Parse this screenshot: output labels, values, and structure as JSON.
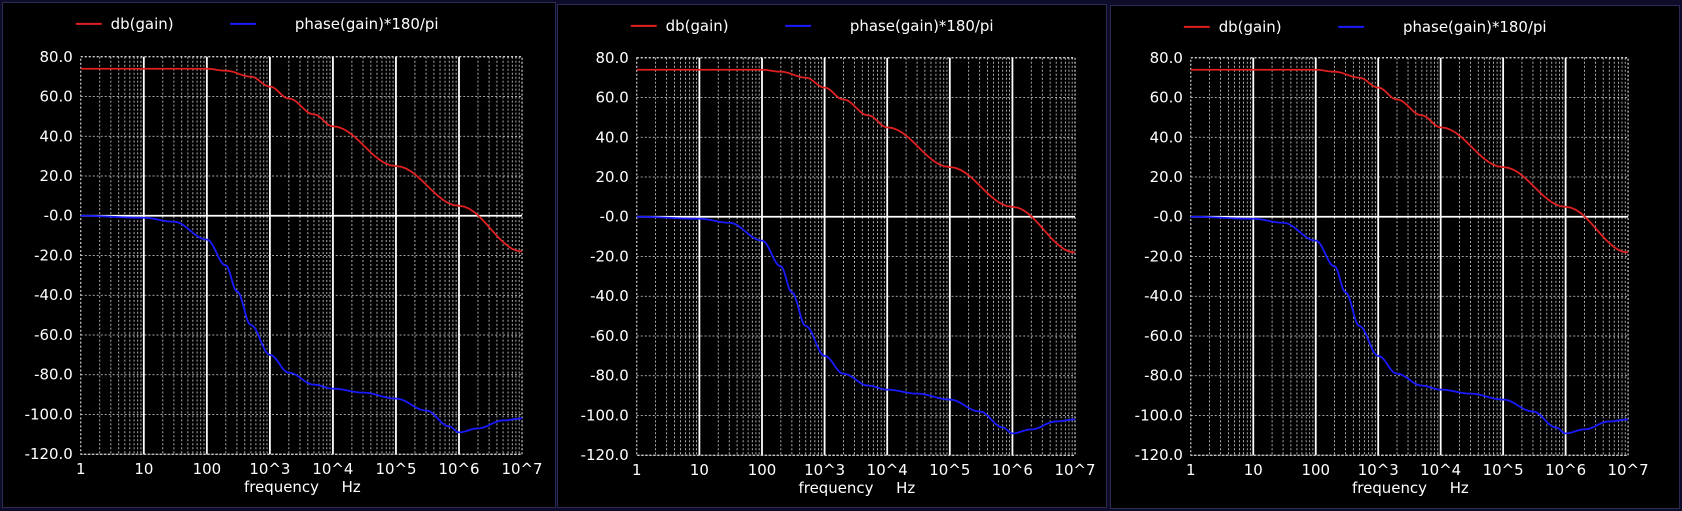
{
  "colors": {
    "background": "#000000",
    "page_border": "#0d0d2a",
    "gain_series": "#e02020",
    "phase_series": "#1a1aff",
    "grid": "#ffffff"
  },
  "chart_data": [
    {
      "type": "line",
      "title": "",
      "xlabel": "frequency",
      "xunit": "Hz",
      "ylabel": "",
      "x_scale": "log",
      "xlim": [
        1,
        10000000
      ],
      "ylim": [
        -120,
        80
      ],
      "grid": true,
      "legend_placement": "top-left",
      "x_ticks": [
        "1",
        "10",
        "100",
        "10^3",
        "10^4",
        "10^5",
        "10^6",
        "10^7"
      ],
      "y_ticks": [
        "80.0",
        "60.0",
        "40.0",
        "20.0",
        "-0.0",
        "-20.0",
        "-40.0",
        "-60.0",
        "-80.0",
        "-100.0",
        "-120.0"
      ],
      "series": [
        {
          "name": "db(gain)",
          "x": [
            1,
            10,
            100,
            200,
            500,
            1000,
            2000,
            5000,
            10000,
            100000,
            1000000,
            10000000
          ],
          "y": [
            74,
            74,
            74,
            73,
            70,
            65,
            59,
            51,
            45,
            25,
            5,
            -18
          ]
        },
        {
          "name": "phase(gain)*180/pi",
          "x": [
            1,
            10,
            30,
            100,
            200,
            300,
            500,
            1000,
            2000,
            5000,
            10000,
            30000,
            100000,
            300000,
            700000,
            1000000,
            2000000,
            5000000,
            10000000
          ],
          "y": [
            0,
            -1,
            -3,
            -12,
            -25,
            -38,
            -55,
            -70,
            -79,
            -85,
            -87,
            -89,
            -92,
            -98,
            -106,
            -109,
            -107,
            -103,
            -102
          ]
        }
      ]
    },
    {
      "type": "line",
      "title": "",
      "xlabel": "frequency",
      "xunit": "Hz",
      "ylabel": "",
      "x_scale": "log",
      "xlim": [
        1,
        10000000
      ],
      "ylim": [
        -120,
        80
      ],
      "grid": true,
      "legend_placement": "top-left",
      "x_ticks": [
        "1",
        "10",
        "100",
        "10^3",
        "10^4",
        "10^5",
        "10^6",
        "10^7"
      ],
      "y_ticks": [
        "80.0",
        "60.0",
        "40.0",
        "20.0",
        "-0.0",
        "-20.0",
        "-40.0",
        "-60.0",
        "-80.0",
        "-100.0",
        "-120.0"
      ],
      "series": [
        {
          "name": "db(gain)",
          "x": [
            1,
            10,
            100,
            200,
            500,
            1000,
            2000,
            5000,
            10000,
            100000,
            1000000,
            10000000
          ],
          "y": [
            74,
            74,
            74,
            73,
            70,
            65,
            59,
            51,
            45,
            25,
            5,
            -18
          ]
        },
        {
          "name": "phase(gain)*180/pi",
          "x": [
            1,
            10,
            30,
            100,
            200,
            300,
            500,
            1000,
            2000,
            5000,
            10000,
            30000,
            100000,
            300000,
            700000,
            1000000,
            2000000,
            5000000,
            10000000
          ],
          "y": [
            0,
            -1,
            -3,
            -12,
            -25,
            -38,
            -55,
            -70,
            -79,
            -85,
            -87,
            -89,
            -92,
            -98,
            -106,
            -109,
            -107,
            -103,
            -102
          ]
        }
      ]
    },
    {
      "type": "line",
      "title": "",
      "xlabel": "frequency",
      "xunit": "Hz",
      "ylabel": "",
      "x_scale": "log",
      "xlim": [
        1,
        10000000
      ],
      "ylim": [
        -120,
        80
      ],
      "grid": true,
      "legend_placement": "top-left",
      "x_ticks": [
        "1",
        "10",
        "100",
        "10^3",
        "10^4",
        "10^5",
        "10^6",
        "10^7"
      ],
      "y_ticks": [
        "80.0",
        "60.0",
        "40.0",
        "20.0",
        "-0.0",
        "-20.0",
        "-40.0",
        "-60.0",
        "-80.0",
        "-100.0",
        "-120.0"
      ],
      "series": [
        {
          "name": "db(gain)",
          "x": [
            1,
            10,
            100,
            200,
            500,
            1000,
            2000,
            5000,
            10000,
            100000,
            1000000,
            10000000
          ],
          "y": [
            74,
            74,
            74,
            73,
            70,
            65,
            59,
            51,
            45,
            25,
            5,
            -18
          ]
        },
        {
          "name": "phase(gain)*180/pi",
          "x": [
            1,
            10,
            30,
            100,
            200,
            300,
            500,
            1000,
            2000,
            5000,
            10000,
            30000,
            100000,
            300000,
            700000,
            1000000,
            2000000,
            5000000,
            10000000
          ],
          "y": [
            0,
            -1,
            -3,
            -12,
            -25,
            -38,
            -55,
            -70,
            -79,
            -85,
            -87,
            -89,
            -92,
            -98,
            -106,
            -109,
            -107,
            -103,
            -102
          ]
        }
      ]
    }
  ]
}
